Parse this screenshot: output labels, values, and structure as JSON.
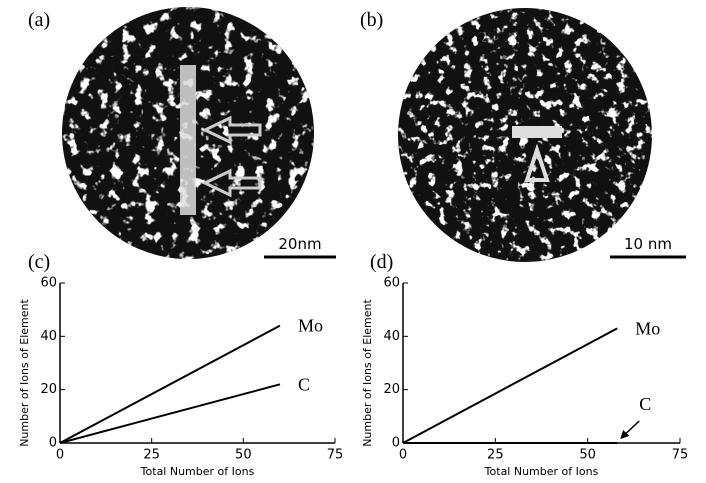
{
  "panels": [
    {
      "label": "(a)",
      "scale_bar": "20nm"
    },
    {
      "label": "(b)",
      "scale_bar": "10 nm"
    },
    {
      "label": "(c)"
    },
    {
      "label": "(d)"
    }
  ],
  "chart_data": [
    {
      "type": "line",
      "xlabel": "Total Number of Ions",
      "ylabel": "Number of Ions of Element",
      "xlim": [
        0,
        75
      ],
      "ylim": [
        0,
        60
      ],
      "xticks": [
        0,
        25,
        50,
        75
      ],
      "yticks": [
        0,
        20,
        40,
        60
      ],
      "series": [
        {
          "name": "Mo",
          "color": "#000000",
          "x": [
            0,
            60
          ],
          "values": [
            0,
            44
          ]
        },
        {
          "name": "C",
          "color": "#000000",
          "x": [
            0,
            60
          ],
          "values": [
            0,
            22
          ]
        }
      ]
    },
    {
      "type": "line",
      "xlabel": "Total Number of Ions",
      "ylabel": "Number of Ions of Element",
      "xlim": [
        0,
        75
      ],
      "ylim": [
        0,
        60
      ],
      "xticks": [
        0,
        25,
        50,
        75
      ],
      "yticks": [
        0,
        20,
        40,
        60
      ],
      "series": [
        {
          "name": "Mo",
          "color": "#000000",
          "x": [
            0,
            58
          ],
          "values": [
            0,
            43
          ]
        },
        {
          "name": "C",
          "color": "#000000",
          "x": [
            0,
            58
          ],
          "values": [
            0,
            0
          ]
        }
      ]
    }
  ]
}
